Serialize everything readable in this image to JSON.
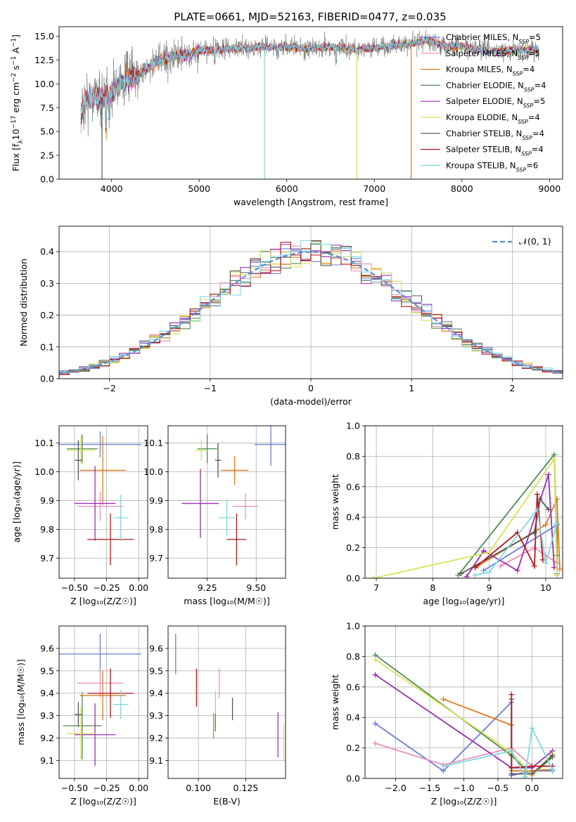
{
  "figure": {
    "title": "PLATE=0661, MJD=52163, FIBERID=0477, z=0.035"
  },
  "colors": {
    "Chabrier MILES": "#6b7ed6",
    "Salpeter MILES": "#e88fbc",
    "Kroupa MILES": "#e07a1f",
    "Chabrier ELODIE": "#4f8a53",
    "Salpeter ELODIE": "#9b2fb4",
    "Kroupa ELODIE": "#d9e25a",
    "Chabrier STELIB": "#555555",
    "Salpeter STELIB": "#b3171a",
    "Kroupa STELIB": "#7fd8dc",
    "normal": "#5b8fd6"
  },
  "chart_data": [
    {
      "id": "spectrum",
      "type": "line",
      "xlabel": "wavelength [Angstrom, rest frame]",
      "xlim": [
        3400,
        9150
      ],
      "ylim": [
        0,
        16
      ],
      "xticks": [
        4000,
        5000,
        6000,
        7000,
        8000,
        9000
      ],
      "yticks": [
        0.0,
        2.5,
        5.0,
        7.5,
        10.0,
        12.5,
        15.0
      ],
      "xtick_labels": [
        "4000",
        "5000",
        "6000",
        "7000",
        "8000",
        "9000"
      ],
      "ytick_labels": [
        "0.0",
        "2.5",
        "5.0",
        "7.5",
        "10.0",
        "12.5",
        "15.0"
      ],
      "legend_position": "right",
      "legend": [
        {
          "label": "Chabrier MILES, N",
          "sub": "SSP",
          "suffix": "=5",
          "color_key": "Chabrier MILES"
        },
        {
          "label": "Salpeter MILES, N",
          "sub": "SSP",
          "suffix": "=5",
          "color_key": "Salpeter MILES"
        },
        {
          "label": "Kroupa MILES, N",
          "sub": "SSP",
          "suffix": "=4",
          "color_key": "Kroupa MILES"
        },
        {
          "label": "Chabrier ELODIE, N",
          "sub": "SSP",
          "suffix": "=4",
          "color_key": "Chabrier ELODIE"
        },
        {
          "label": "Salpeter ELODIE, N",
          "sub": "SSP",
          "suffix": "=5",
          "color_key": "Salpeter ELODIE"
        },
        {
          "label": "Kroupa ELODIE, N",
          "sub": "SSP",
          "suffix": "=4",
          "color_key": "Kroupa ELODIE"
        },
        {
          "label": "Chabrier STELIB, N",
          "sub": "SSP",
          "suffix": "=4",
          "color_key": "Chabrier STELIB"
        },
        {
          "label": "Salpeter STELIB, N",
          "sub": "SSP",
          "suffix": "=4",
          "color_key": "Salpeter STELIB"
        },
        {
          "label": "Kroupa STELIB, N",
          "sub": "SSP",
          "suffix": "=6",
          "color_key": "Kroupa STELIB"
        }
      ],
      "continuum": [
        [
          3650,
          6.8
        ],
        [
          3700,
          8.2
        ],
        [
          3800,
          8.8
        ],
        [
          3900,
          8.6
        ],
        [
          4000,
          9.0
        ],
        [
          4100,
          10.2
        ],
        [
          4200,
          10.6
        ],
        [
          4300,
          10.9
        ],
        [
          4400,
          11.6
        ],
        [
          4500,
          12.2
        ],
        [
          4600,
          12.6
        ],
        [
          4700,
          12.9
        ],
        [
          4800,
          13.0
        ],
        [
          4900,
          13.1
        ],
        [
          5000,
          13.4
        ],
        [
          5200,
          13.6
        ],
        [
          5400,
          13.7
        ],
        [
          5600,
          13.8
        ],
        [
          5800,
          13.9
        ],
        [
          6000,
          13.9
        ],
        [
          6200,
          13.7
        ],
        [
          6400,
          13.8
        ],
        [
          6600,
          13.9
        ],
        [
          6800,
          13.6
        ],
        [
          7000,
          13.8
        ],
        [
          7200,
          14.0
        ],
        [
          7400,
          14.2
        ],
        [
          7600,
          14.6
        ],
        [
          7800,
          14.0
        ],
        [
          8000,
          13.9
        ],
        [
          8200,
          13.6
        ],
        [
          8400,
          13.4
        ],
        [
          8600,
          13.5
        ],
        [
          8800,
          13.6
        ],
        [
          8880,
          13.5
        ]
      ],
      "deep_features": [
        {
          "x": 3890,
          "min": 0.0,
          "color_key": "Chabrier STELIB"
        },
        {
          "x": 5745,
          "min": 0.0,
          "color_key": "Kroupa STELIB"
        },
        {
          "x": 6800,
          "min": 0.0,
          "color_key": "Kroupa ELODIE"
        },
        {
          "x": 7420,
          "min": 0.0,
          "color_key": "Kroupa MILES"
        }
      ]
    },
    {
      "id": "residual_hist",
      "type": "histogram",
      "xlabel": "(data-model)/error",
      "ylabel": "Normed distribution",
      "xlim": [
        -2.5,
        2.5
      ],
      "ylim": [
        0,
        0.48
      ],
      "bin_width": 0.1,
      "xticks": [
        -2,
        -1,
        0,
        1,
        2
      ],
      "xtick_labels": [
        "−2",
        "−1",
        "0",
        "1",
        "2"
      ],
      "yticks": [
        0.0,
        0.1,
        0.2,
        0.3,
        0.4
      ],
      "ytick_labels": [
        "0.0",
        "0.1",
        "0.2",
        "0.3",
        "0.4"
      ],
      "legend_position": "top-right",
      "reference_curve": {
        "name": "𝒩(0, 1)",
        "type": "normal",
        "mean": 0,
        "std": 1
      },
      "series_colors": [
        "Chabrier MILES",
        "Salpeter MILES",
        "Kroupa MILES",
        "Chabrier ELODIE",
        "Salpeter ELODIE",
        "Kroupa ELODIE",
        "Chabrier STELIB",
        "Salpeter STELIB",
        "Kroupa STELIB"
      ]
    },
    {
      "id": "age_vs_Z",
      "type": "scatter",
      "xlabel": "Z [log₁₀(Z/Z☉)]",
      "ylabel": "age  [log₁₀(age/yr)]",
      "xlim": [
        -0.62,
        0.07
      ],
      "ylim": [
        9.63,
        10.16
      ],
      "xticks": [
        -0.5,
        -0.25,
        0.0
      ],
      "xtick_labels": [
        "−0.50",
        "−0.25",
        "0.00"
      ],
      "yticks": [
        9.7,
        9.8,
        9.9,
        10.0,
        10.1
      ],
      "ytick_labels": [
        "9.7",
        "9.8",
        "9.9",
        "10.0",
        "10.1"
      ],
      "points": [
        {
          "key": "Chabrier MILES",
          "x": -0.3,
          "xerr": 0.32,
          "y": 10.095,
          "yerr": 0.045
        },
        {
          "key": "Salpeter MILES",
          "x": -0.3,
          "xerr": 0.18,
          "y": 9.88,
          "yerr": 0.05
        },
        {
          "key": "Kroupa MILES",
          "x": -0.28,
          "xerr": 0.18,
          "y": 10.005,
          "yerr": 0.12
        },
        {
          "key": "Chabrier ELODIE",
          "x": -0.44,
          "xerr": 0.12,
          "y": 10.08,
          "yerr": 0.05
        },
        {
          "key": "Salpeter ELODIE",
          "x": -0.34,
          "xerr": 0.16,
          "y": 9.89,
          "yerr": 0.13
        },
        {
          "key": "Kroupa ELODIE",
          "x": -0.45,
          "xerr": 0.11,
          "y": 10.075,
          "yerr": 0.05
        },
        {
          "key": "Chabrier STELIB",
          "x": -0.47,
          "xerr": 0.03,
          "y": 10.04,
          "yerr": 0.07
        },
        {
          "key": "Salpeter STELIB",
          "x": -0.22,
          "xerr": 0.18,
          "y": 9.765,
          "yerr": 0.09
        },
        {
          "key": "Kroupa STELIB",
          "x": -0.14,
          "xerr": 0.06,
          "y": 9.84,
          "yerr": 0.08
        }
      ]
    },
    {
      "id": "age_vs_mass",
      "type": "scatter",
      "xlabel": "mass [log₁₀(M/M☉)]",
      "ylabel": "",
      "xlim": [
        9.05,
        9.65
      ],
      "ylim": [
        9.63,
        10.16
      ],
      "xticks": [
        9.25,
        9.5
      ],
      "xtick_labels": [
        "9.25",
        "9.50"
      ],
      "yticks": [
        9.7,
        9.8,
        9.9,
        10.0,
        10.1
      ],
      "ytick_labels": [
        "9.7",
        "9.8",
        "9.9",
        "10.0",
        "10.1"
      ],
      "points": [
        {
          "key": "Chabrier MILES",
          "x": 9.575,
          "xerr": 0.085,
          "y": 10.095,
          "yerr": 0.075
        },
        {
          "key": "Salpeter MILES",
          "x": 9.445,
          "xerr": 0.065,
          "y": 9.88,
          "yerr": 0.045
        },
        {
          "key": "Kroupa MILES",
          "x": 9.39,
          "xerr": 0.07,
          "y": 10.005,
          "yerr": 0.05
        },
        {
          "key": "Chabrier ELODIE",
          "x": 9.25,
          "xerr": 0.05,
          "y": 10.08,
          "yerr": 0.05
        },
        {
          "key": "Salpeter ELODIE",
          "x": 9.215,
          "xerr": 0.095,
          "y": 9.89,
          "yerr": 0.12
        },
        {
          "key": "Kroupa ELODIE",
          "x": 9.22,
          "xerr": 0.03,
          "y": 10.075,
          "yerr": 0.035
        },
        {
          "key": "Chabrier STELIB",
          "x": 9.305,
          "xerr": 0.015,
          "y": 10.04,
          "yerr": 0.06
        },
        {
          "key": "Salpeter STELIB",
          "x": 9.4,
          "xerr": 0.05,
          "y": 9.765,
          "yerr": 0.09
        },
        {
          "key": "Kroupa STELIB",
          "x": 9.35,
          "xerr": 0.04,
          "y": 9.84,
          "yerr": 0.065
        }
      ]
    },
    {
      "id": "mass_weight_vs_age",
      "type": "line",
      "xlabel": "age  [log₁₀(age/yr)]",
      "ylabel": "mass weight",
      "xlim": [
        6.8,
        10.3
      ],
      "ylim": [
        0,
        1.0
      ],
      "xticks": [
        7,
        8,
        9,
        10
      ],
      "xtick_labels": [
        "7",
        "8",
        "9",
        "10"
      ],
      "yticks": [
        0.0,
        0.2,
        0.4,
        0.6,
        0.8,
        1.0
      ],
      "ytick_labels": [
        "0.0",
        "0.2",
        "0.4",
        "0.6",
        "0.8",
        "1.0"
      ],
      "series": [
        {
          "key": "Chabrier MILES",
          "x": [
            8.9,
            10.2,
            10.2
          ],
          "y": [
            0.05,
            0.35,
            0.03
          ]
        },
        {
          "key": "Salpeter MILES",
          "x": [
            9.2,
            9.8,
            10.0,
            10.2
          ],
          "y": [
            0.08,
            0.2,
            0.15,
            0.1
          ]
        },
        {
          "key": "Kroupa MILES",
          "x": [
            8.8,
            10.0,
            10.2,
            10.25
          ],
          "y": [
            0.08,
            0.35,
            0.52,
            0.06
          ]
        },
        {
          "key": "Chabrier ELODIE",
          "x": [
            8.45,
            10.15,
            10.2,
            10.2
          ],
          "y": [
            0.02,
            0.81,
            0.15,
            0.02
          ]
        },
        {
          "key": "Salpeter ELODIE",
          "x": [
            8.6,
            8.9,
            9.5,
            10.05,
            10.15
          ],
          "y": [
            0.01,
            0.18,
            0.05,
            0.68,
            0.07
          ]
        },
        {
          "key": "Kroupa ELODIE",
          "x": [
            6.95,
            9.0,
            10.15,
            10.2
          ],
          "y": [
            0.0,
            0.17,
            0.78,
            0.02
          ]
        },
        {
          "key": "Chabrier STELIB",
          "x": [
            8.5,
            9.8,
            9.9,
            10.05
          ],
          "y": [
            0.03,
            0.3,
            0.52,
            0.45
          ]
        },
        {
          "key": "Salpeter STELIB",
          "x": [
            8.75,
            9.5,
            9.8,
            9.85,
            9.95
          ],
          "y": [
            0.07,
            0.3,
            0.08,
            0.55,
            0.12
          ]
        },
        {
          "key": "Kroupa STELIB",
          "x": [
            8.75,
            9.0,
            9.85,
            10.0,
            10.2
          ],
          "y": [
            0.02,
            0.04,
            0.45,
            0.1,
            0.36
          ]
        }
      ]
    },
    {
      "id": "mass_vs_Z",
      "type": "scatter",
      "xlabel": "Z [log₁₀(Z/Z☉)]",
      "ylabel": "mass [log₁₀(M/M☉)]",
      "xlim": [
        -0.62,
        0.07
      ],
      "ylim": [
        9.02,
        9.7
      ],
      "xticks": [
        -0.5,
        -0.25,
        0.0
      ],
      "xtick_labels": [
        "−0.50",
        "−0.25",
        "0.00"
      ],
      "yticks": [
        9.1,
        9.2,
        9.3,
        9.4,
        9.5,
        9.6
      ],
      "ytick_labels": [
        "9.1",
        "9.2",
        "9.3",
        "9.4",
        "9.5",
        "9.6"
      ],
      "points": [
        {
          "key": "Chabrier MILES",
          "x": -0.3,
          "xerr": 0.32,
          "y": 9.575,
          "yerr": 0.09
        },
        {
          "key": "Salpeter MILES",
          "x": -0.3,
          "xerr": 0.18,
          "y": 9.445,
          "yerr": 0.065
        },
        {
          "key": "Kroupa MILES",
          "x": -0.28,
          "xerr": 0.18,
          "y": 9.39,
          "yerr": 0.11
        },
        {
          "key": "Chabrier ELODIE",
          "x": -0.44,
          "xerr": 0.15,
          "y": 9.255,
          "yerr": 0.15
        },
        {
          "key": "Salpeter ELODIE",
          "x": -0.34,
          "xerr": 0.16,
          "y": 9.215,
          "yerr": 0.14
        },
        {
          "key": "Kroupa ELODIE",
          "x": -0.45,
          "xerr": 0.11,
          "y": 9.22,
          "yerr": 0.12
        },
        {
          "key": "Chabrier STELIB",
          "x": -0.47,
          "xerr": 0.03,
          "y": 9.305,
          "yerr": 0.055
        },
        {
          "key": "Salpeter STELIB",
          "x": -0.22,
          "xerr": 0.18,
          "y": 9.4,
          "yerr": 0.11
        },
        {
          "key": "Kroupa STELIB",
          "x": -0.14,
          "xerr": 0.06,
          "y": 9.35,
          "yerr": 0.065
        }
      ]
    },
    {
      "id": "mass_vs_ebv",
      "type": "scatter",
      "xlabel": "E(B-V)",
      "ylabel": "",
      "xlim": [
        0.084,
        0.146
      ],
      "ylim": [
        9.02,
        9.7
      ],
      "xticks": [
        0.1,
        0.125
      ],
      "xtick_labels": [
        "0.100",
        "0.125"
      ],
      "yticks": [
        9.1,
        9.2,
        9.3,
        9.4,
        9.5,
        9.6
      ],
      "ytick_labels": [
        "9.1",
        "9.2",
        "9.3",
        "9.4",
        "9.5",
        "9.6"
      ],
      "points": [
        {
          "key": "Chabrier MILES",
          "x": 0.088,
          "y": 9.575,
          "yerr": 0.09
        },
        {
          "key": "Salpeter MILES",
          "x": 0.111,
          "y": 9.445,
          "yerr": 0.065
        },
        {
          "key": "Kroupa MILES",
          "x": 0.108,
          "y": 9.255,
          "yerr": 0.055
        },
        {
          "key": "Chabrier ELODIE",
          "x": 0.109,
          "y": 9.27,
          "yerr": 0.04
        },
        {
          "key": "Salpeter ELODIE",
          "x": 0.142,
          "y": 9.215,
          "yerr": 0.1
        },
        {
          "key": "Kroupa ELODIE",
          "x": 0.145,
          "y": 9.18,
          "yerr": 0.085
        },
        {
          "key": "Chabrier STELIB",
          "x": 0.118,
          "y": 9.33,
          "yerr": 0.05
        },
        {
          "key": "Salpeter STELIB",
          "x": 0.099,
          "y": 9.425,
          "yerr": 0.085
        },
        {
          "key": "Kroupa STELIB",
          "x": 0.109,
          "y": 9.36,
          "yerr": 0.05
        }
      ]
    },
    {
      "id": "mass_weight_vs_Z",
      "type": "line",
      "xlabel": "Z [log₁₀(Z/Z☉)]",
      "ylabel": "mass weight",
      "xlim": [
        -2.45,
        0.45
      ],
      "ylim": [
        0,
        1.0
      ],
      "xticks": [
        -2.0,
        -1.5,
        -1.0,
        -0.5,
        0.0
      ],
      "xtick_labels": [
        "−2.0",
        "−1.5",
        "−1.0",
        "−0.5",
        "0.0"
      ],
      "yticks": [
        0.0,
        0.2,
        0.4,
        0.6,
        0.8,
        1.0
      ],
      "ytick_labels": [
        "0.0",
        "0.2",
        "0.4",
        "0.6",
        "0.8",
        "1.0"
      ],
      "series": [
        {
          "key": "Chabrier MILES",
          "x": [
            -2.3,
            -1.3,
            -0.3,
            -0.3,
            0.0,
            0.3
          ],
          "y": [
            0.36,
            0.05,
            0.5,
            0.02,
            0.05,
            0.05
          ]
        },
        {
          "key": "Salpeter MILES",
          "x": [
            -2.3,
            -1.3,
            -0.3,
            0.0,
            0.3
          ],
          "y": [
            0.23,
            0.09,
            0.2,
            0.08,
            0.08
          ]
        },
        {
          "key": "Kroupa MILES",
          "x": [
            -1.3,
            -0.3,
            -0.3,
            0.0,
            0.3
          ],
          "y": [
            0.52,
            0.35,
            0.05,
            0.05,
            0.06
          ]
        },
        {
          "key": "Chabrier ELODIE",
          "x": [
            -2.3,
            -0.3,
            0.0,
            0.3
          ],
          "y": [
            0.81,
            0.15,
            0.02,
            0.14
          ]
        },
        {
          "key": "Salpeter ELODIE",
          "x": [
            -2.3,
            -0.3,
            0.0,
            0.3
          ],
          "y": [
            0.68,
            0.07,
            0.07,
            0.18
          ]
        },
        {
          "key": "Kroupa ELODIE",
          "x": [
            -2.3,
            -0.3,
            0.0,
            0.3
          ],
          "y": [
            0.78,
            0.17,
            0.02,
            0.16
          ]
        },
        {
          "key": "Chabrier STELIB",
          "x": [
            -0.3,
            -0.3,
            0.0,
            0.3
          ],
          "y": [
            0.52,
            0.03,
            0.03,
            0.15
          ]
        },
        {
          "key": "Salpeter STELIB",
          "x": [
            -0.3,
            -0.3,
            0.0,
            0.3
          ],
          "y": [
            0.55,
            0.07,
            0.08,
            0.08
          ]
        },
        {
          "key": "Kroupa STELIB",
          "x": [
            -1.3,
            -0.3,
            -0.1,
            0.0,
            0.3
          ],
          "y": [
            0.08,
            0.18,
            0.01,
            0.33,
            0.06
          ]
        }
      ]
    }
  ]
}
